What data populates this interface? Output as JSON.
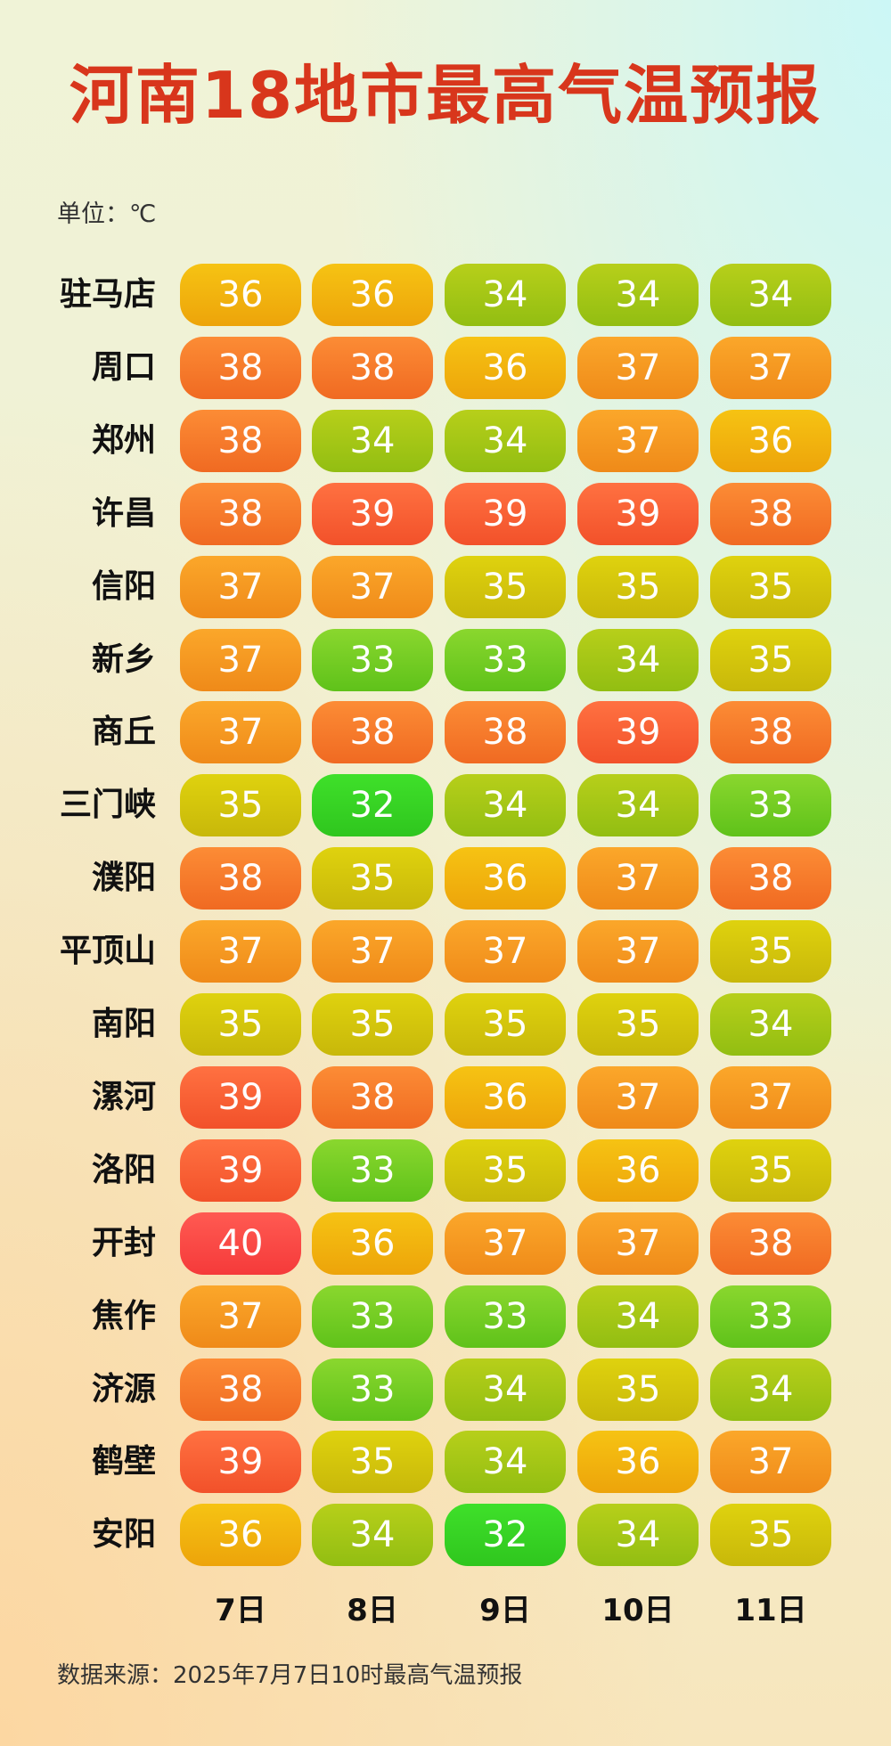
{
  "title": "河南18地市最高气温预报",
  "unit": "单位：℃",
  "source": "数据来源：2025年7月7日10时最高气温预报",
  "chart_data": {
    "type": "heatmap",
    "title": "河南18地市最高气温预报",
    "unit": "℃",
    "x": [
      "7日",
      "8日",
      "9日",
      "10日",
      "11日"
    ],
    "y": [
      "驻马店",
      "周口",
      "郑州",
      "许昌",
      "信阳",
      "新乡",
      "商丘",
      "三门峡",
      "濮阳",
      "平顶山",
      "南阳",
      "漯河",
      "洛阳",
      "开封",
      "焦作",
      "济源",
      "鹤壁",
      "安阳"
    ],
    "values": [
      [
        36,
        36,
        34,
        34,
        34
      ],
      [
        38,
        38,
        36,
        37,
        37
      ],
      [
        38,
        34,
        34,
        37,
        36
      ],
      [
        38,
        39,
        39,
        39,
        38
      ],
      [
        37,
        37,
        35,
        35,
        35
      ],
      [
        37,
        33,
        33,
        34,
        35
      ],
      [
        37,
        38,
        38,
        39,
        38
      ],
      [
        35,
        32,
        34,
        34,
        33
      ],
      [
        38,
        35,
        36,
        37,
        38
      ],
      [
        37,
        37,
        37,
        37,
        35
      ],
      [
        35,
        35,
        35,
        35,
        34
      ],
      [
        39,
        38,
        36,
        37,
        37
      ],
      [
        39,
        33,
        35,
        36,
        35
      ],
      [
        40,
        36,
        37,
        37,
        38
      ],
      [
        37,
        33,
        33,
        34,
        33
      ],
      [
        38,
        33,
        34,
        35,
        34
      ],
      [
        39,
        35,
        34,
        36,
        37
      ],
      [
        36,
        34,
        32,
        34,
        35
      ]
    ],
    "colors": {
      "32": [
        "#3fe02a",
        "#2fc61e"
      ],
      "33": [
        "#8ad72e",
        "#5fc21a"
      ],
      "34": [
        "#b7cf1a",
        "#92be12"
      ],
      "35": [
        "#dfd20e",
        "#c8b80a"
      ],
      "36": [
        "#f6c313",
        "#eda40a"
      ],
      "37": [
        "#fba72a",
        "#ef8a19"
      ],
      "38": [
        "#fc8c35",
        "#f06a22"
      ],
      "39": [
        "#ff7141",
        "#f2512a"
      ],
      "40": [
        "#ff5a52",
        "#f53a3a"
      ]
    }
  }
}
